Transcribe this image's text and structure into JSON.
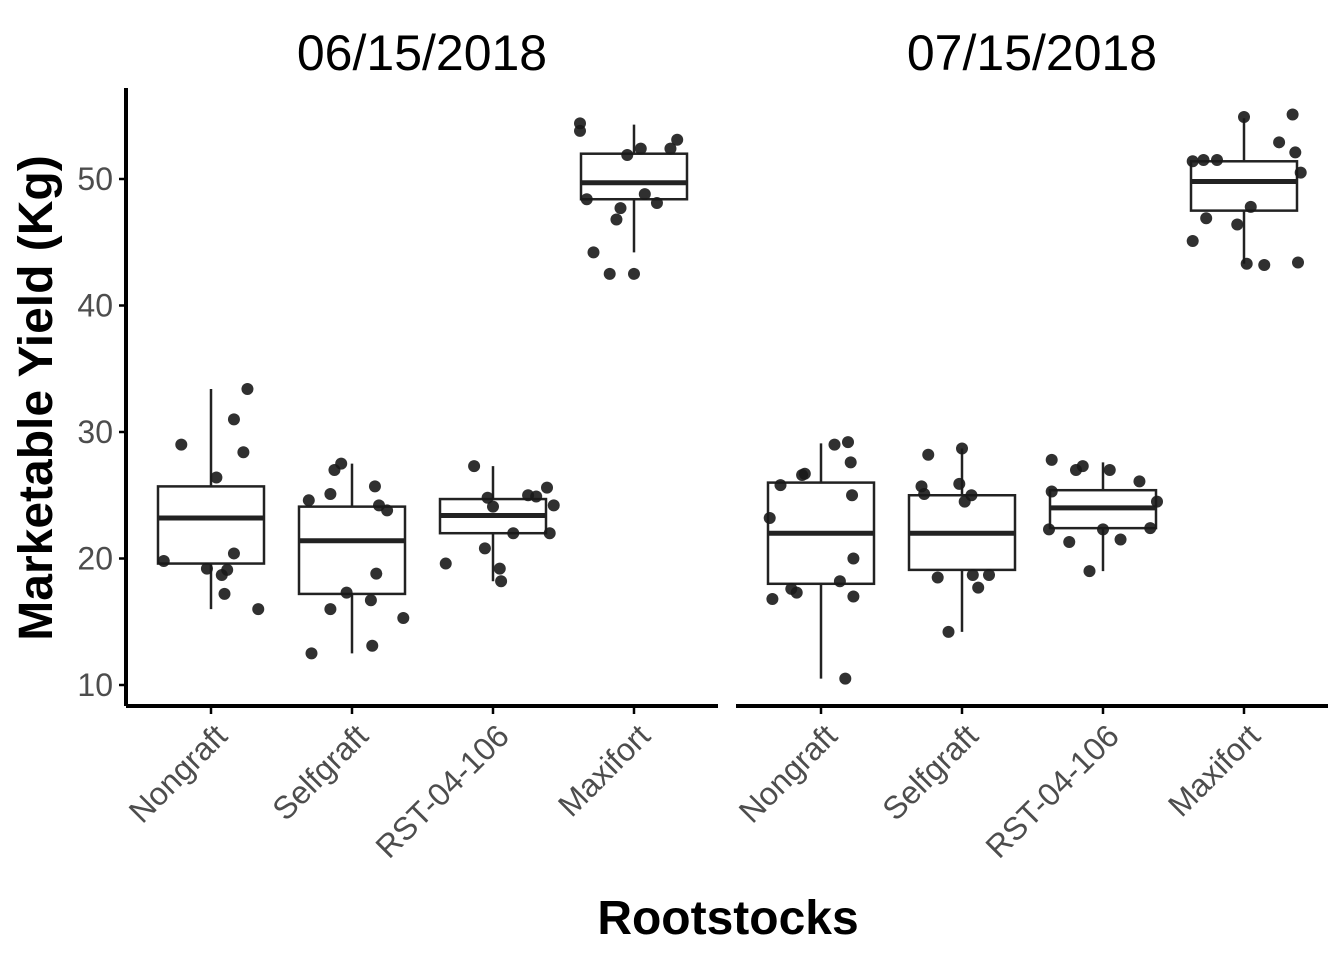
{
  "chart_data": {
    "type": "box",
    "ylabel": "Marketable Yield (Kg)",
    "xlabel": "Rootstocks",
    "ylim": [
      8.5,
      57
    ],
    "yticks": [
      10,
      20,
      30,
      40,
      50
    ],
    "categories": [
      "Nongraft",
      "Selfgraft",
      "RST-04-106",
      "Maxifort"
    ],
    "grid": false,
    "facets": [
      {
        "title": "06/15/2018",
        "boxes": [
          {
            "category": "Nongraft",
            "whisker_low": 16.0,
            "q1": 19.6,
            "median": 23.2,
            "q3": 25.7,
            "whisker_high": 33.4,
            "points": [
              [
                -0.35,
                19.8
              ],
              [
                -0.22,
                29.0
              ],
              [
                -0.03,
                19.2
              ],
              [
                0.04,
                26.4
              ],
              [
                0.08,
                18.7
              ],
              [
                0.1,
                17.2
              ],
              [
                0.12,
                19.1
              ],
              [
                0.17,
                31.0
              ],
              [
                0.24,
                28.4
              ],
              [
                0.27,
                33.4
              ],
              [
                0.17,
                20.4
              ],
              [
                0.35,
                16.0
              ]
            ]
          },
          {
            "category": "Selfgraft",
            "whisker_low": 12.5,
            "q1": 17.2,
            "median": 21.4,
            "q3": 24.1,
            "whisker_high": 27.5,
            "points": [
              [
                -0.32,
                24.6
              ],
              [
                -0.3,
                12.5
              ],
              [
                -0.16,
                25.1
              ],
              [
                -0.16,
                16.0
              ],
              [
                -0.13,
                27.0
              ],
              [
                -0.08,
                27.5
              ],
              [
                -0.04,
                17.3
              ],
              [
                0.14,
                16.7
              ],
              [
                0.15,
                13.1
              ],
              [
                0.17,
                25.7
              ],
              [
                0.18,
                18.8
              ],
              [
                0.26,
                23.8
              ],
              [
                0.38,
                15.3
              ],
              [
                0.2,
                24.2
              ]
            ]
          },
          {
            "category": "RST-04-106",
            "whisker_low": 18.2,
            "q1": 22.0,
            "median": 23.4,
            "q3": 24.7,
            "whisker_high": 27.3,
            "points": [
              [
                -0.35,
                19.6
              ],
              [
                -0.14,
                27.3
              ],
              [
                -0.06,
                20.8
              ],
              [
                -0.04,
                24.8
              ],
              [
                0.05,
                19.2
              ],
              [
                0.06,
                18.2
              ],
              [
                0.0,
                24.1
              ],
              [
                0.15,
                22.0
              ],
              [
                0.26,
                25.0
              ],
              [
                0.32,
                24.9
              ],
              [
                0.4,
                25.6
              ],
              [
                0.42,
                22.0
              ],
              [
                0.45,
                24.2
              ]
            ]
          },
          {
            "category": "Maxifort",
            "whisker_low": 44.2,
            "q1": 48.4,
            "median": 49.7,
            "q3": 52.0,
            "whisker_high": 54.3,
            "points": [
              [
                -0.4,
                54.4
              ],
              [
                -0.4,
                53.8
              ],
              [
                -0.35,
                48.4
              ],
              [
                -0.3,
                44.2
              ],
              [
                -0.18,
                42.5
              ],
              [
                -0.13,
                46.8
              ],
              [
                -0.1,
                47.7
              ],
              [
                -0.05,
                51.9
              ],
              [
                0.0,
                42.5
              ],
              [
                0.05,
                52.4
              ],
              [
                0.08,
                48.8
              ],
              [
                0.17,
                48.1
              ],
              [
                0.27,
                52.4
              ],
              [
                0.32,
                53.1
              ]
            ]
          }
        ]
      },
      {
        "title": "07/15/2018",
        "boxes": [
          {
            "category": "Nongraft",
            "whisker_low": 10.5,
            "q1": 18.0,
            "median": 22.0,
            "q3": 26.0,
            "whisker_high": 29.1,
            "points": [
              [
                -0.38,
                23.2
              ],
              [
                -0.36,
                16.8
              ],
              [
                -0.3,
                25.8
              ],
              [
                -0.22,
                17.6
              ],
              [
                -0.18,
                17.3
              ],
              [
                -0.14,
                26.6
              ],
              [
                -0.12,
                26.7
              ],
              [
                0.1,
                29.0
              ],
              [
                0.14,
                18.2
              ],
              [
                0.2,
                29.2
              ],
              [
                0.22,
                27.6
              ],
              [
                0.23,
                25.0
              ],
              [
                0.24,
                20.0
              ],
              [
                0.24,
                17.0
              ],
              [
                0.18,
                10.5
              ]
            ]
          },
          {
            "category": "Selfgraft",
            "whisker_low": 14.2,
            "q1": 19.1,
            "median": 22.0,
            "q3": 25.0,
            "whisker_high": 28.7,
            "points": [
              [
                -0.3,
                25.7
              ],
              [
                -0.28,
                25.1
              ],
              [
                -0.25,
                28.2
              ],
              [
                -0.18,
                18.5
              ],
              [
                -0.1,
                14.2
              ],
              [
                -0.02,
                25.9
              ],
              [
                0.0,
                28.7
              ],
              [
                0.08,
                18.7
              ],
              [
                0.12,
                17.7
              ],
              [
                0.2,
                18.7
              ],
              [
                0.02,
                24.5
              ],
              [
                0.07,
                25.0
              ]
            ]
          },
          {
            "category": "RST-04-106",
            "whisker_low": 19.0,
            "q1": 22.4,
            "median": 24.0,
            "q3": 25.4,
            "whisker_high": 27.6,
            "points": [
              [
                -0.38,
                27.8
              ],
              [
                -0.38,
                25.3
              ],
              [
                -0.4,
                22.3
              ],
              [
                -0.25,
                21.3
              ],
              [
                -0.2,
                27.0
              ],
              [
                -0.15,
                27.3
              ],
              [
                -0.1,
                19.0
              ],
              [
                0.0,
                22.3
              ],
              [
                0.05,
                27.0
              ],
              [
                0.13,
                21.5
              ],
              [
                0.27,
                26.1
              ],
              [
                0.35,
                22.4
              ],
              [
                0.4,
                24.5
              ]
            ]
          },
          {
            "category": "Maxifort",
            "whisker_low": 43.3,
            "q1": 47.5,
            "median": 49.8,
            "q3": 51.4,
            "whisker_high": 54.8,
            "points": [
              [
                -0.38,
                51.4
              ],
              [
                -0.38,
                45.1
              ],
              [
                -0.3,
                51.5
              ],
              [
                -0.28,
                46.9
              ],
              [
                -0.2,
                51.5
              ],
              [
                -0.05,
                46.4
              ],
              [
                0.0,
                54.9
              ],
              [
                0.05,
                47.8
              ],
              [
                0.02,
                43.3
              ],
              [
                0.15,
                43.2
              ],
              [
                0.26,
                52.9
              ],
              [
                0.36,
                55.1
              ],
              [
                0.38,
                52.1
              ],
              [
                0.4,
                43.4
              ],
              [
                0.42,
                50.5
              ]
            ]
          }
        ]
      }
    ]
  }
}
